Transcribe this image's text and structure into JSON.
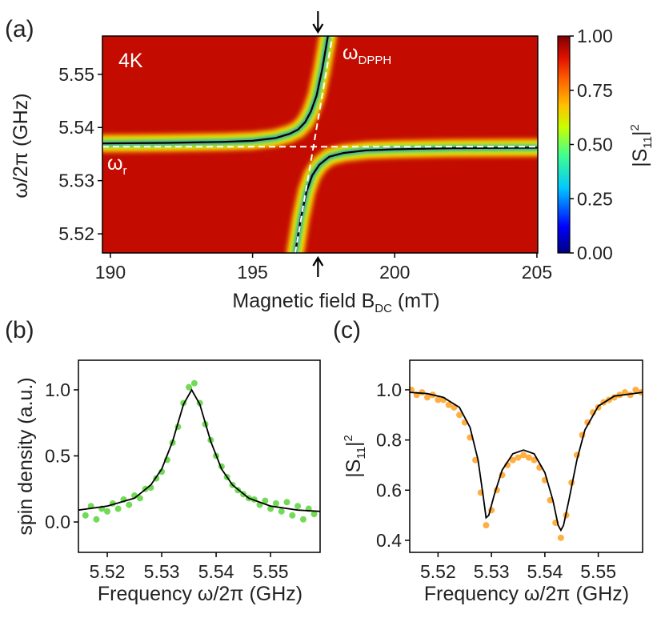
{
  "chart_data": [
    {
      "type": "heatmap",
      "panel": "(a)",
      "ylabel": "ω/2π (GHz)",
      "xlabel": {
        "main": "Magnetic field B",
        "sub": "DC",
        "end": " (mT)"
      },
      "annotation": "4K",
      "omega_dpph": {
        "main": "ω",
        "sub": "DPPH"
      },
      "omega_r": {
        "main": "ω",
        "sub": "r"
      },
      "xlim": [
        189.72,
        205.03
      ],
      "ylim": [
        5.5164,
        5.5572
      ],
      "xticks": [
        190,
        195,
        200,
        205
      ],
      "yticks": [
        5.52,
        5.53,
        5.54,
        5.55
      ],
      "background_value": 0.93,
      "colorbar": {
        "label": {
          "main": "|S",
          "sub": "11",
          "end": "|",
          "sup": "2"
        },
        "lim": [
          0,
          1
        ],
        "ticks": [
          {
            "value": 0,
            "label": "0.00"
          },
          {
            "value": 0.25,
            "label": "0.25"
          },
          {
            "value": 0.5,
            "label": "0.50"
          },
          {
            "value": 0.75,
            "label": "0.75"
          },
          {
            "value": 1,
            "label": "1.00"
          }
        ],
        "colormap": [
          {
            "value": 0,
            "color": "#00007f"
          },
          {
            "value": 0.12,
            "color": "#0000ff"
          },
          {
            "value": 0.3,
            "color": "#00c8ff"
          },
          {
            "value": 0.45,
            "color": "#40ff90"
          },
          {
            "value": 0.58,
            "color": "#c8ff00"
          },
          {
            "value": 0.68,
            "color": "#ffc000"
          },
          {
            "value": 0.8,
            "color": "#ff6000"
          },
          {
            "value": 0.9,
            "color": "#e01000"
          },
          {
            "value": 1,
            "color": "#7f0000"
          }
        ]
      },
      "arrow_x": 197.3,
      "series": [
        {
          "color": "#000000",
          "dash": false,
          "x": [
            189.72,
            192,
            194,
            195,
            195.8,
            196.3,
            196.6,
            196.85,
            197.05,
            197.25,
            197.45,
            197.65
          ],
          "values": [
            5.537,
            5.5371,
            5.5373,
            5.5375,
            5.538,
            5.5388,
            5.5396,
            5.541,
            5.543,
            5.546,
            5.551,
            5.5572
          ]
        },
        {
          "color": "#000000",
          "dash": false,
          "x": [
            196.5,
            196.7,
            196.9,
            197.1,
            197.35,
            197.7,
            198.2,
            199,
            200,
            202,
            205.03
          ],
          "values": [
            5.5164,
            5.523,
            5.528,
            5.531,
            5.533,
            5.5345,
            5.5352,
            5.5357,
            5.5359,
            5.5361,
            5.5362
          ]
        },
        {
          "color": "#ffffff",
          "dash": true,
          "x": [
            189.72,
            205.03
          ],
          "values": [
            5.5364,
            5.5364
          ]
        },
        {
          "color": "#ffffff",
          "dash": true,
          "x": [
            196.5,
            197.8
          ],
          "values": [
            5.5164,
            5.557
          ]
        }
      ]
    },
    {
      "type": "scatter",
      "panel": "(b)",
      "ylabel": "spin density (a.u.)",
      "xlabel": "Frequency ω/2π (GHz)",
      "xlim": [
        5.5147,
        5.5591
      ],
      "ylim": [
        -0.23,
        1.224
      ],
      "xticks": [
        5.52,
        5.53,
        5.54,
        5.55
      ],
      "yticks": [
        {
          "value": 0,
          "label": "0.0"
        },
        0.5,
        {
          "value": 1,
          "label": "1.0"
        }
      ],
      "points": {
        "color": "#5ad43a",
        "x": [
          5.516,
          5.517,
          5.518,
          5.519,
          5.52,
          5.521,
          5.522,
          5.523,
          5.524,
          5.525,
          5.526,
          5.527,
          5.528,
          5.529,
          5.53,
          5.531,
          5.532,
          5.533,
          5.534,
          5.535,
          5.536,
          5.537,
          5.538,
          5.539,
          5.54,
          5.541,
          5.542,
          5.543,
          5.544,
          5.545,
          5.546,
          5.547,
          5.548,
          5.549,
          5.55,
          5.551,
          5.552,
          5.553,
          5.554,
          5.555,
          5.556,
          5.557,
          5.558
        ],
        "values": [
          0.05,
          0.12,
          0.02,
          0.1,
          0.08,
          0.14,
          0.1,
          0.17,
          0.13,
          0.2,
          0.18,
          0.25,
          0.26,
          0.33,
          0.38,
          0.47,
          0.6,
          0.72,
          0.9,
          1.02,
          1.05,
          0.9,
          0.74,
          0.62,
          0.5,
          0.42,
          0.34,
          0.28,
          0.24,
          0.21,
          0.18,
          0.17,
          0.13,
          0.16,
          0.1,
          0.14,
          0.08,
          0.15,
          0.05,
          0.12,
          0.02,
          0.1,
          0.06
        ]
      },
      "fit": {
        "color": "#000000",
        "x": [
          5.5147,
          5.52,
          5.525,
          5.528,
          5.53,
          5.532,
          5.534,
          5.5355,
          5.537,
          5.539,
          5.541,
          5.543,
          5.546,
          5.55,
          5.555,
          5.5591
        ],
        "values": [
          0.09,
          0.12,
          0.18,
          0.28,
          0.4,
          0.61,
          0.89,
          1,
          0.89,
          0.61,
          0.4,
          0.28,
          0.18,
          0.12,
          0.09,
          0.08
        ]
      }
    },
    {
      "type": "scatter",
      "panel": "(c)",
      "ylabel": {
        "main": "|S",
        "sub": "11",
        "end": "|",
        "sup": "2"
      },
      "xlabel": "Frequency ω/2π (GHz)",
      "xlim": [
        5.5147,
        5.5583
      ],
      "ylim": [
        0.352,
        1.118
      ],
      "xticks": [
        5.52,
        5.53,
        5.54,
        5.55
      ],
      "yticks": [
        0.4,
        0.6,
        0.8,
        {
          "value": 1,
          "label": "1.0"
        }
      ],
      "points": {
        "color": "#ffa020",
        "x": [
          5.515,
          5.516,
          5.517,
          5.518,
          5.519,
          5.52,
          5.521,
          5.522,
          5.523,
          5.524,
          5.525,
          5.526,
          5.527,
          5.528,
          5.529,
          5.53,
          5.531,
          5.532,
          5.533,
          5.534,
          5.535,
          5.536,
          5.537,
          5.538,
          5.539,
          5.54,
          5.541,
          5.542,
          5.543,
          5.544,
          5.545,
          5.546,
          5.547,
          5.548,
          5.549,
          5.55,
          5.551,
          5.552,
          5.553,
          5.554,
          5.555,
          5.556,
          5.557,
          5.558
        ],
        "values": [
          1.0,
          0.98,
          0.99,
          0.97,
          0.98,
          0.96,
          0.96,
          0.94,
          0.93,
          0.9,
          0.87,
          0.81,
          0.72,
          0.59,
          0.46,
          0.52,
          0.6,
          0.66,
          0.7,
          0.72,
          0.73,
          0.74,
          0.73,
          0.72,
          0.69,
          0.64,
          0.56,
          0.47,
          0.41,
          0.5,
          0.63,
          0.74,
          0.82,
          0.87,
          0.91,
          0.93,
          0.95,
          0.96,
          0.97,
          0.98,
          0.99,
          0.98,
          1.0,
          0.99
        ]
      },
      "fit": {
        "color": "#000000",
        "x": [
          5.5147,
          5.518,
          5.521,
          5.524,
          5.526,
          5.5275,
          5.5285,
          5.529,
          5.5295,
          5.5305,
          5.532,
          5.534,
          5.536,
          5.538,
          5.54,
          5.5415,
          5.5425,
          5.543,
          5.5435,
          5.5445,
          5.546,
          5.5475,
          5.55,
          5.553,
          5.5583
        ],
        "values": [
          0.99,
          0.985,
          0.97,
          0.93,
          0.85,
          0.72,
          0.57,
          0.49,
          0.5,
          0.58,
          0.68,
          0.745,
          0.76,
          0.745,
          0.67,
          0.56,
          0.46,
          0.44,
          0.46,
          0.56,
          0.72,
          0.84,
          0.935,
          0.975,
          0.99
        ]
      }
    }
  ]
}
